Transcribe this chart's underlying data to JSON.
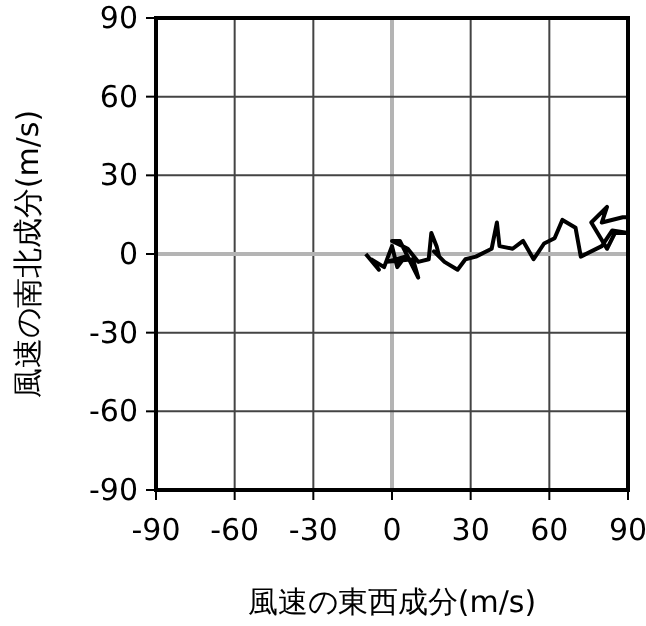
{
  "chart_data": {
    "type": "line",
    "xlabel": "風速の東西成分(m/s)",
    "ylabel": "風速の南北成分(m/s)",
    "xlim": [
      -90,
      90
    ],
    "ylim": [
      -90,
      90
    ],
    "xticks": [
      -90,
      -60,
      -30,
      0,
      30,
      60,
      90
    ],
    "yticks": [
      -90,
      -60,
      -30,
      0,
      30,
      60,
      90
    ],
    "grid": true,
    "series": [
      {
        "color": "#000000",
        "x": [
          -10,
          -5,
          -8,
          -3,
          0,
          2,
          5,
          -2,
          8,
          10,
          3,
          0,
          6,
          10,
          14,
          15,
          17,
          18,
          16,
          20,
          25,
          28,
          32,
          38,
          40,
          41,
          46,
          50,
          54,
          58,
          62,
          65,
          70,
          72,
          80,
          84,
          90,
          85,
          82,
          76,
          82,
          80,
          88,
          90
        ],
        "values": [
          0,
          -6,
          -2,
          -5,
          3,
          -5,
          -1,
          -3,
          -2,
          -9,
          5,
          5,
          2,
          -3,
          -2,
          8,
          3,
          -1,
          1,
          -3,
          -6,
          -2,
          -1,
          2,
          12,
          3,
          2,
          5,
          -2,
          4,
          6,
          13,
          10,
          -1,
          3,
          9,
          8,
          8,
          2,
          12,
          18,
          12,
          14,
          14
        ]
      }
    ]
  }
}
